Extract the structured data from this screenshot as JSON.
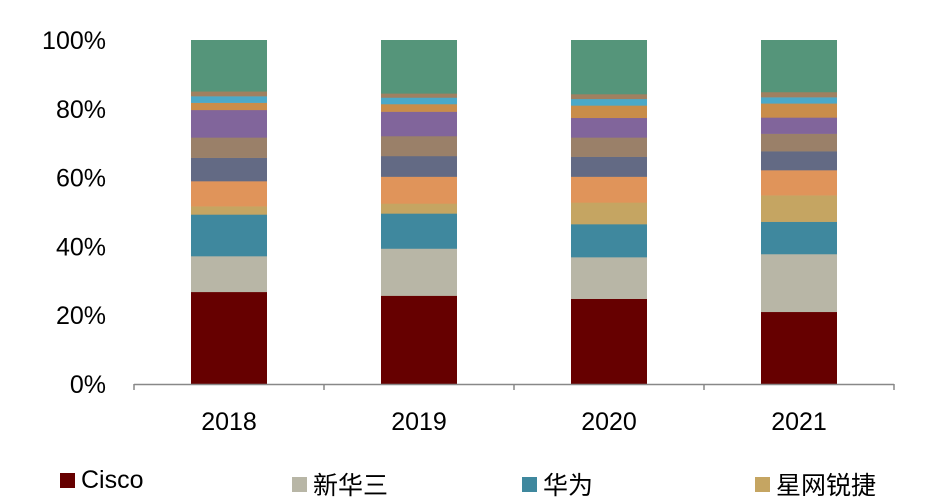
{
  "chart_data": {
    "type": "bar",
    "stacked": true,
    "categories": [
      "2018",
      "2019",
      "2020",
      "2021"
    ],
    "ylim": [
      0,
      100
    ],
    "yticks": [
      "0%",
      "20%",
      "40%",
      "60%",
      "80%",
      "100%"
    ],
    "grid": false,
    "legend_position": "bottom",
    "series": [
      {
        "name": "Cisco",
        "color": "#660000",
        "values": [
          26.8,
          25.7,
          24.8,
          21.0
        ]
      },
      {
        "name": "新华三",
        "color": "#B8B6A6",
        "values": [
          10.4,
          13.7,
          12.1,
          16.8
        ]
      },
      {
        "name": "华为",
        "color": "#3F889E",
        "values": [
          12.1,
          10.2,
          9.6,
          9.4
        ]
      },
      {
        "name": "星网锐捷",
        "color": "#C5A562",
        "values": [
          2.4,
          2.9,
          6.3,
          7.7
        ]
      },
      {
        "color": "#E0945A",
        "values": [
          7.3,
          7.8,
          7.5,
          7.3
        ]
      },
      {
        "color": "#636A84",
        "values": [
          6.8,
          6.0,
          5.8,
          5.5
        ]
      },
      {
        "color": "#9A8069",
        "values": [
          5.9,
          5.8,
          5.6,
          5.1
        ]
      },
      {
        "color": "#81659B",
        "values": [
          8.0,
          7.1,
          5.7,
          4.7
        ]
      },
      {
        "color": "#C98D4A",
        "values": [
          2.1,
          2.2,
          3.6,
          4.1
        ]
      },
      {
        "color": "#4BA9C8",
        "values": [
          1.9,
          1.9,
          1.9,
          1.8
        ]
      },
      {
        "color": "#A08060",
        "values": [
          1.4,
          1.2,
          1.4,
          1.5
        ]
      },
      {
        "color": "#55957A",
        "values": [
          14.9,
          15.5,
          15.7,
          15.1
        ]
      }
    ]
  }
}
